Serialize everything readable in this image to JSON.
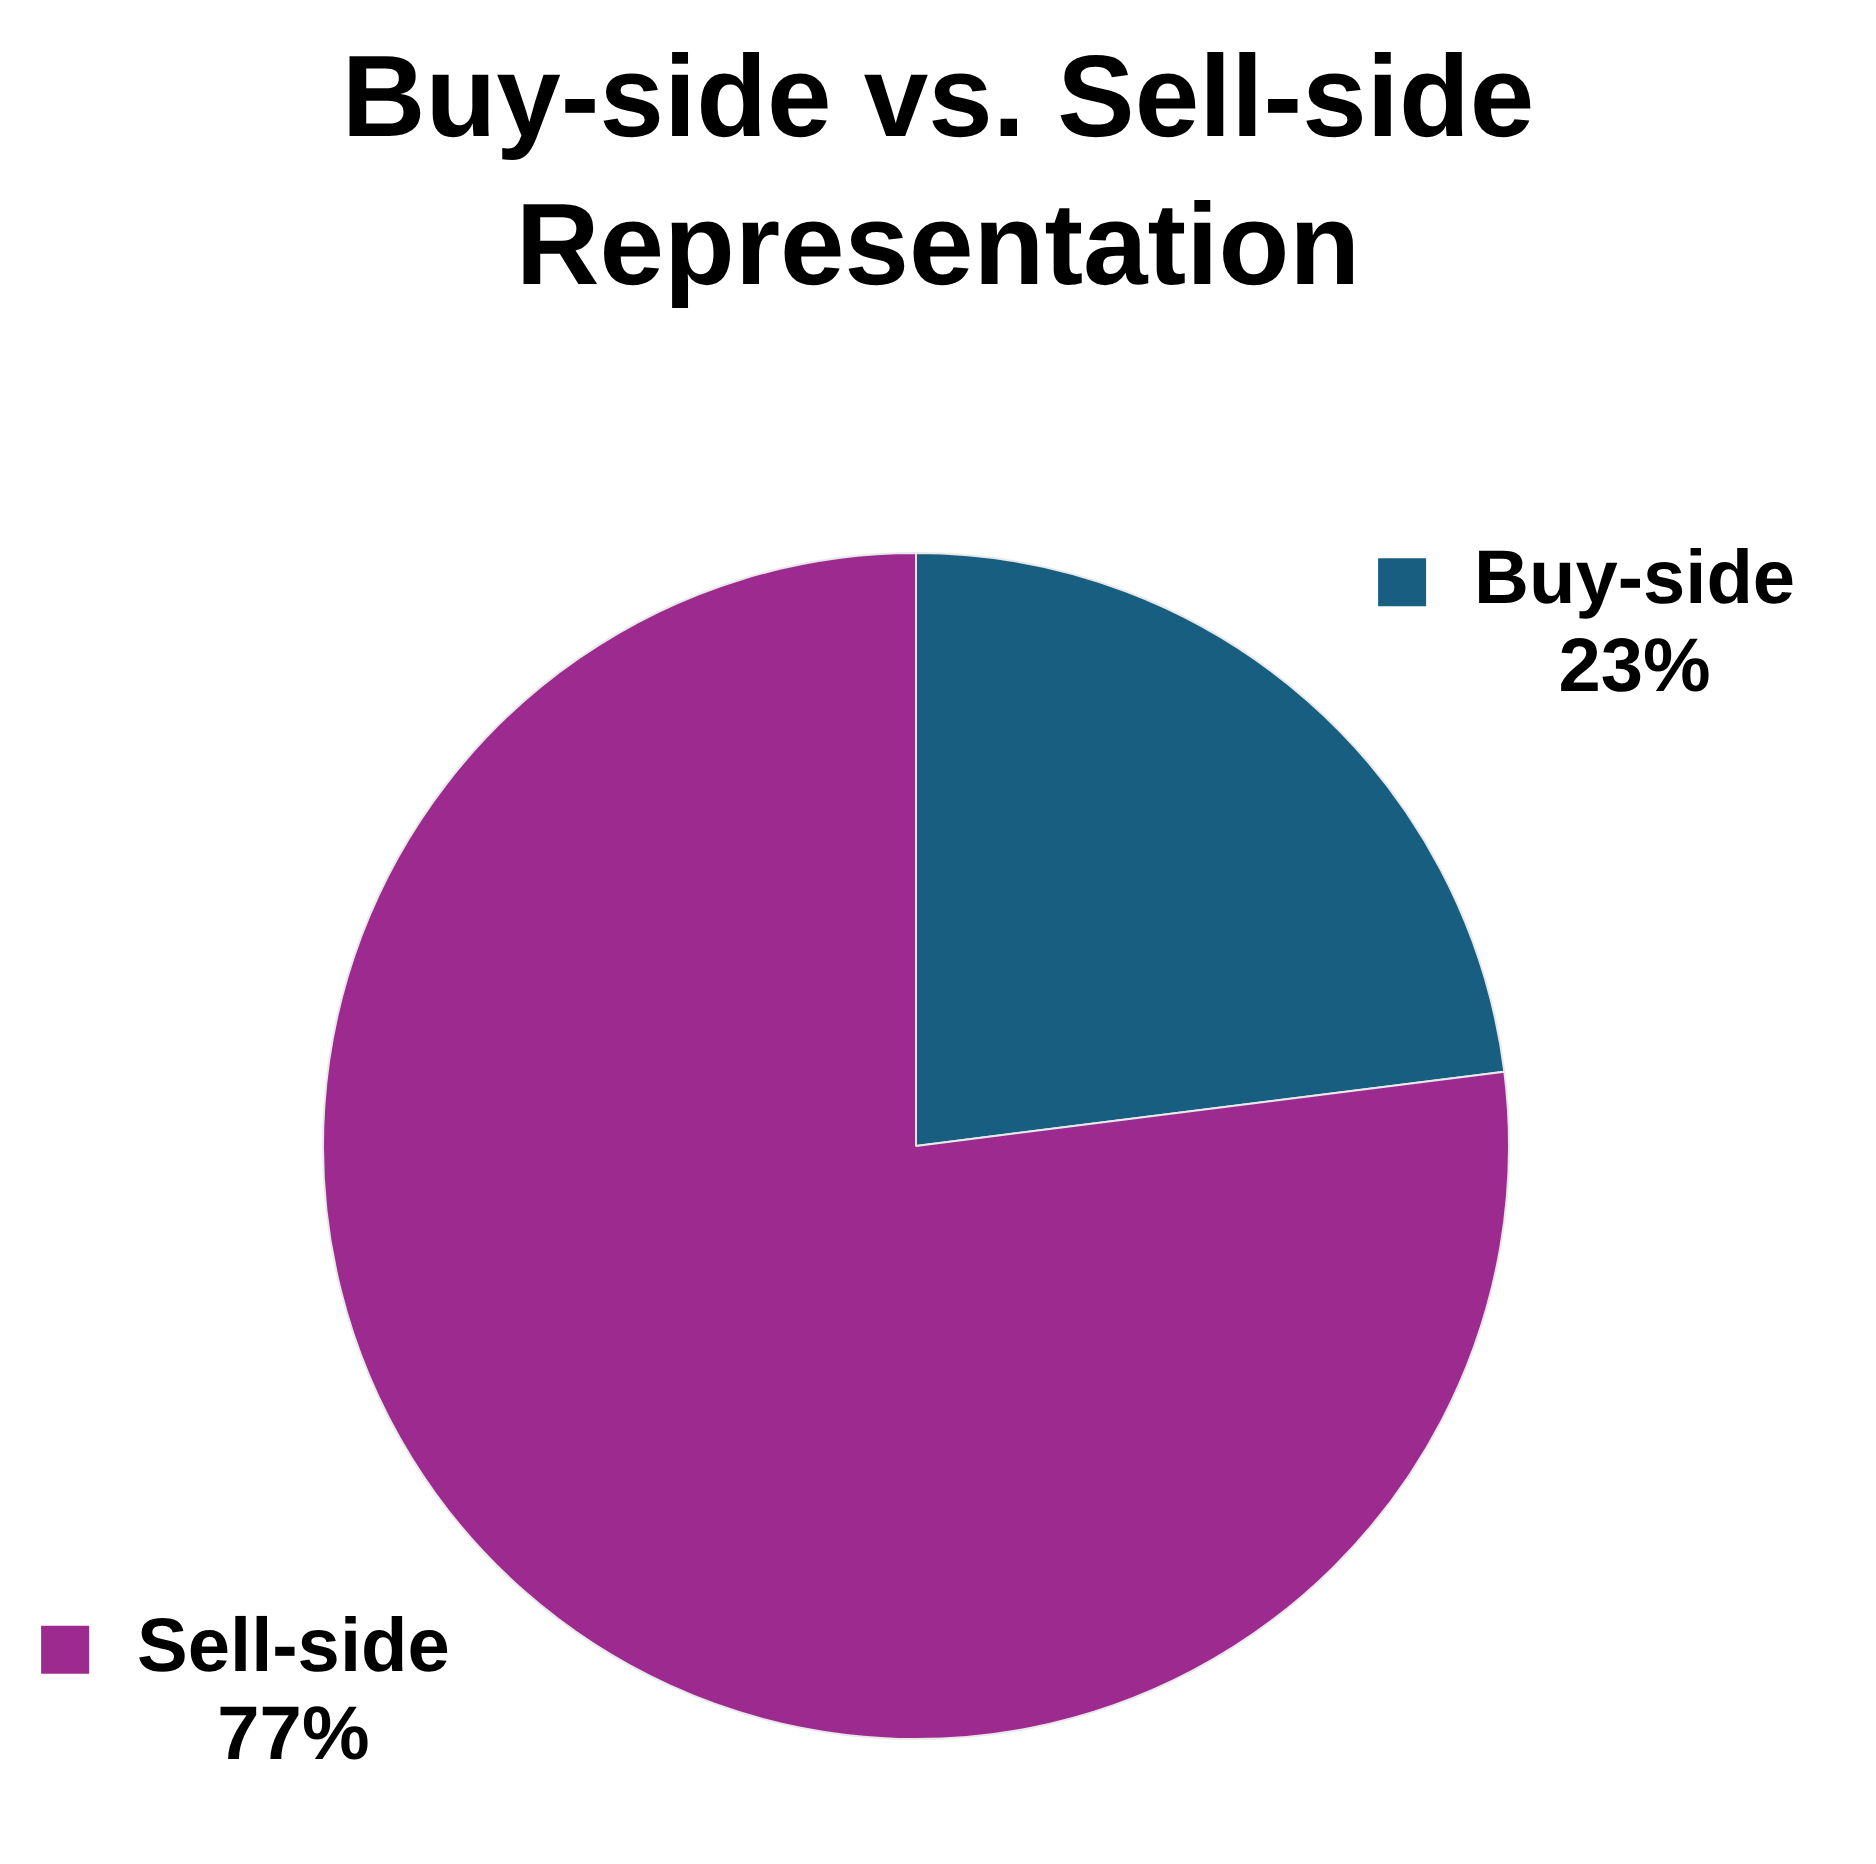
{
  "chart_data": {
    "type": "pie",
    "title": "Buy-side vs. Sell-side Representation",
    "categories": [
      "Buy-side",
      "Sell-side"
    ],
    "values": [
      23,
      77
    ],
    "colors": [
      "#175e80",
      "#9c2a8f"
    ],
    "value_labels": [
      "23%",
      "77%"
    ],
    "legend": "top right"
  }
}
